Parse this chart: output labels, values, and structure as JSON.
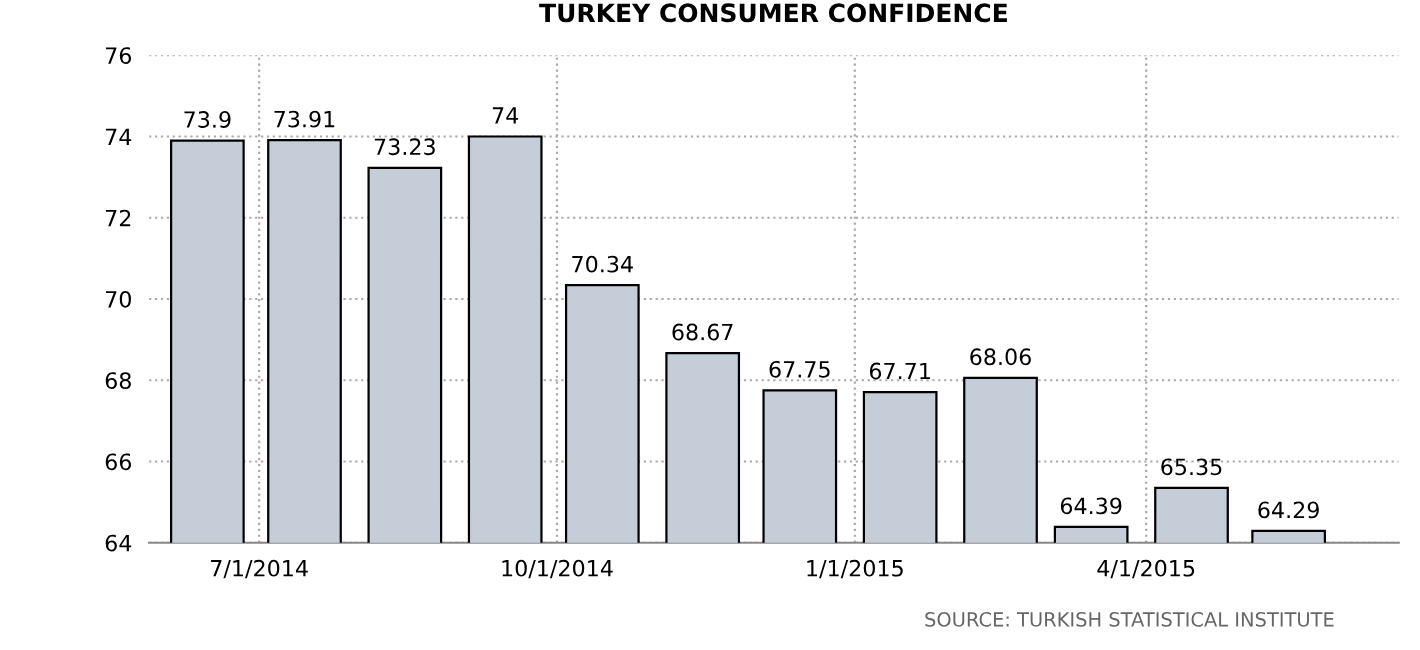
{
  "chart_data": {
    "type": "bar",
    "title": "TURKEY CONSUMER CONFIDENCE",
    "x": [
      "2014-06-15",
      "2014-07-15",
      "2014-08-15",
      "2014-09-15",
      "2014-10-15",
      "2014-11-15",
      "2014-12-15",
      "2015-01-15",
      "2015-02-15",
      "2015-03-15",
      "2015-04-15",
      "2015-05-15"
    ],
    "values": [
      73.9,
      73.91,
      73.23,
      74,
      70.34,
      68.67,
      67.75,
      67.71,
      68.06,
      64.39,
      65.35,
      64.29
    ],
    "color": "#c5ced8",
    "data_labels": true,
    "xlim": [
      "2014-05-28",
      "2015-06-18"
    ],
    "xticks": [
      {
        "value": "2014-07-01",
        "label": "7/1/2014"
      },
      {
        "value": "2014-10-01",
        "label": "10/1/2014"
      },
      {
        "value": "2015-01-01",
        "label": "1/1/2015"
      },
      {
        "value": "2015-04-01",
        "label": "4/1/2015"
      }
    ],
    "ylim": [
      64,
      76
    ],
    "yticks": [
      64,
      66,
      68,
      70,
      72,
      74,
      76
    ],
    "grid": true,
    "annotations": [
      "SOURCE: TURKISH STATISTICAL INSTITUTE"
    ]
  }
}
